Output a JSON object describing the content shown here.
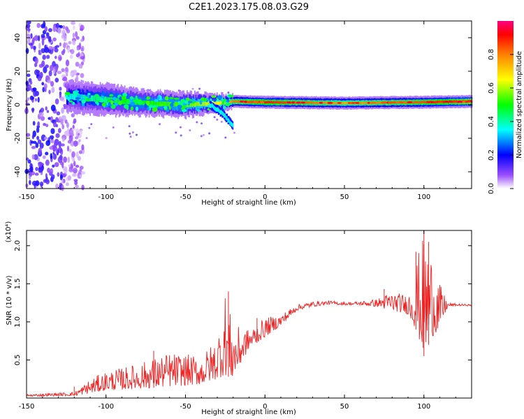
{
  "title": "C2E1.2023.175.08.03.G29",
  "chart_data": [
    {
      "type": "heatmap",
      "xlabel": "Height of straight line (km)",
      "ylabel": "Frequency (Hz)",
      "xlim": [
        -150,
        130
      ],
      "ylim": [
        -50,
        50
      ],
      "xticks": [
        -150,
        -100,
        -50,
        0,
        50,
        100
      ],
      "yticks": [
        -40,
        -20,
        0,
        20,
        40
      ],
      "colorbar": {
        "label": "Normalized spectral amplitude",
        "range": [
          0,
          1
        ],
        "ticks": [
          "0.0",
          "0.2",
          "0.4",
          "0.6",
          "0.8"
        ],
        "tick_values": [
          0.0,
          0.2,
          0.4,
          0.6,
          0.8
        ],
        "colors": [
          "#ffffff",
          "#7f00ff",
          "#0000ff",
          "#00ffff",
          "#00ff00",
          "#ffff00",
          "#ff8000",
          "#ff0000",
          "#ff0080"
        ]
      },
      "features": {
        "noise_region_x": [
          -150,
          -118
        ],
        "signal_band": [
          {
            "x": -125,
            "f": 5,
            "width": 5,
            "amp": 0.35
          },
          {
            "x": -100,
            "f": 3,
            "width": 5,
            "amp": 0.45
          },
          {
            "x": -75,
            "f": 1,
            "width": 4,
            "amp": 0.5
          },
          {
            "x": -50,
            "f": 0,
            "width": 4,
            "amp": 0.55
          },
          {
            "x": -30,
            "f": 1,
            "width": 3,
            "amp": 0.65
          },
          {
            "x": -20,
            "f": 2,
            "width": 2,
            "amp": 0.8
          },
          {
            "x": 0,
            "f": 1.5,
            "width": 2,
            "amp": 0.9
          },
          {
            "x": 50,
            "f": 1,
            "width": 2,
            "amp": 0.75
          },
          {
            "x": 100,
            "f": 1.5,
            "width": 2,
            "amp": 0.85
          },
          {
            "x": 130,
            "f": 2,
            "width": 2,
            "amp": 1.0
          }
        ],
        "downward_branch": [
          {
            "x": -35,
            "f": 0
          },
          {
            "x": -27,
            "f": -5
          },
          {
            "x": -20,
            "f": -13
          }
        ]
      }
    },
    {
      "type": "line",
      "xlabel": "Height of straight line (km)",
      "ylabel": "SNR (10 * v/v)",
      "y_multiplier": "(x10⁴)",
      "xlim": [
        -150,
        130
      ],
      "ylim": [
        0,
        22000
      ],
      "xticks": [
        -150,
        -100,
        -50,
        0,
        50,
        100
      ],
      "yticks": [
        5000,
        10000,
        15000,
        20000
      ],
      "yticklabels": [
        "0.5",
        "1.0",
        "1.5",
        "2.0"
      ],
      "series_color": "#ee2222",
      "envelope": {
        "x": [
          -150,
          -120,
          -110,
          -100,
          -80,
          -60,
          -40,
          -30,
          -25,
          -20,
          -10,
          0,
          10,
          20,
          30,
          40,
          50,
          60,
          70,
          80,
          90,
          95,
          100,
          105,
          110,
          115,
          120,
          130
        ],
        "y_low": [
          200,
          300,
          600,
          1000,
          1200,
          1500,
          1800,
          2500,
          3000,
          2500,
          6500,
          8000,
          9500,
          11500,
          12000,
          12300,
          12200,
          12200,
          12000,
          11500,
          11000,
          9000,
          5500,
          8000,
          9000,
          12000,
          12100,
          12100
        ],
        "y_high": [
          500,
          800,
          2500,
          3500,
          4500,
          6000,
          5500,
          8000,
          14000,
          9500,
          9000,
          10500,
          11000,
          12300,
          12700,
          12800,
          12600,
          12700,
          13000,
          14000,
          13500,
          18000,
          21500,
          19000,
          15000,
          12500,
          12400,
          12300
        ]
      },
      "spikes": [
        {
          "x": -120,
          "y": 1500
        },
        {
          "x": -70,
          "y": 6200
        },
        {
          "x": -23,
          "y": 14000
        },
        {
          "x": -5,
          "y": 10500
        },
        {
          "x": 75,
          "y": 14300
        },
        {
          "x": 95,
          "y": 19200
        },
        {
          "x": 100,
          "y": 22000
        },
        {
          "x": 103,
          "y": 20500
        }
      ]
    }
  ]
}
